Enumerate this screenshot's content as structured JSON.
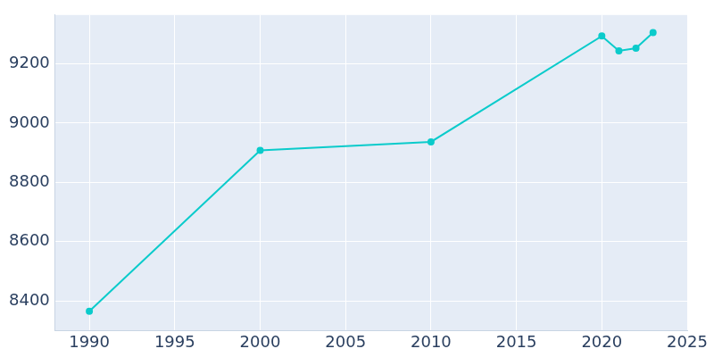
{
  "chart_data": {
    "type": "line",
    "x": [
      1990,
      2000,
      2010,
      2020,
      2021,
      2022,
      2023
    ],
    "values": [
      8365,
      8908,
      8937,
      9294,
      9244,
      9253,
      9306
    ],
    "color": "#0bcbcb",
    "marker": "circle",
    "xlim": [
      1988,
      2025
    ],
    "xticks": [
      1990,
      1995,
      2000,
      2005,
      2010,
      2015,
      2020,
      2025
    ],
    "ylim": [
      8300,
      9365
    ],
    "yticks": [
      8400,
      8600,
      8800,
      9000,
      9200
    ],
    "grid": true
  }
}
